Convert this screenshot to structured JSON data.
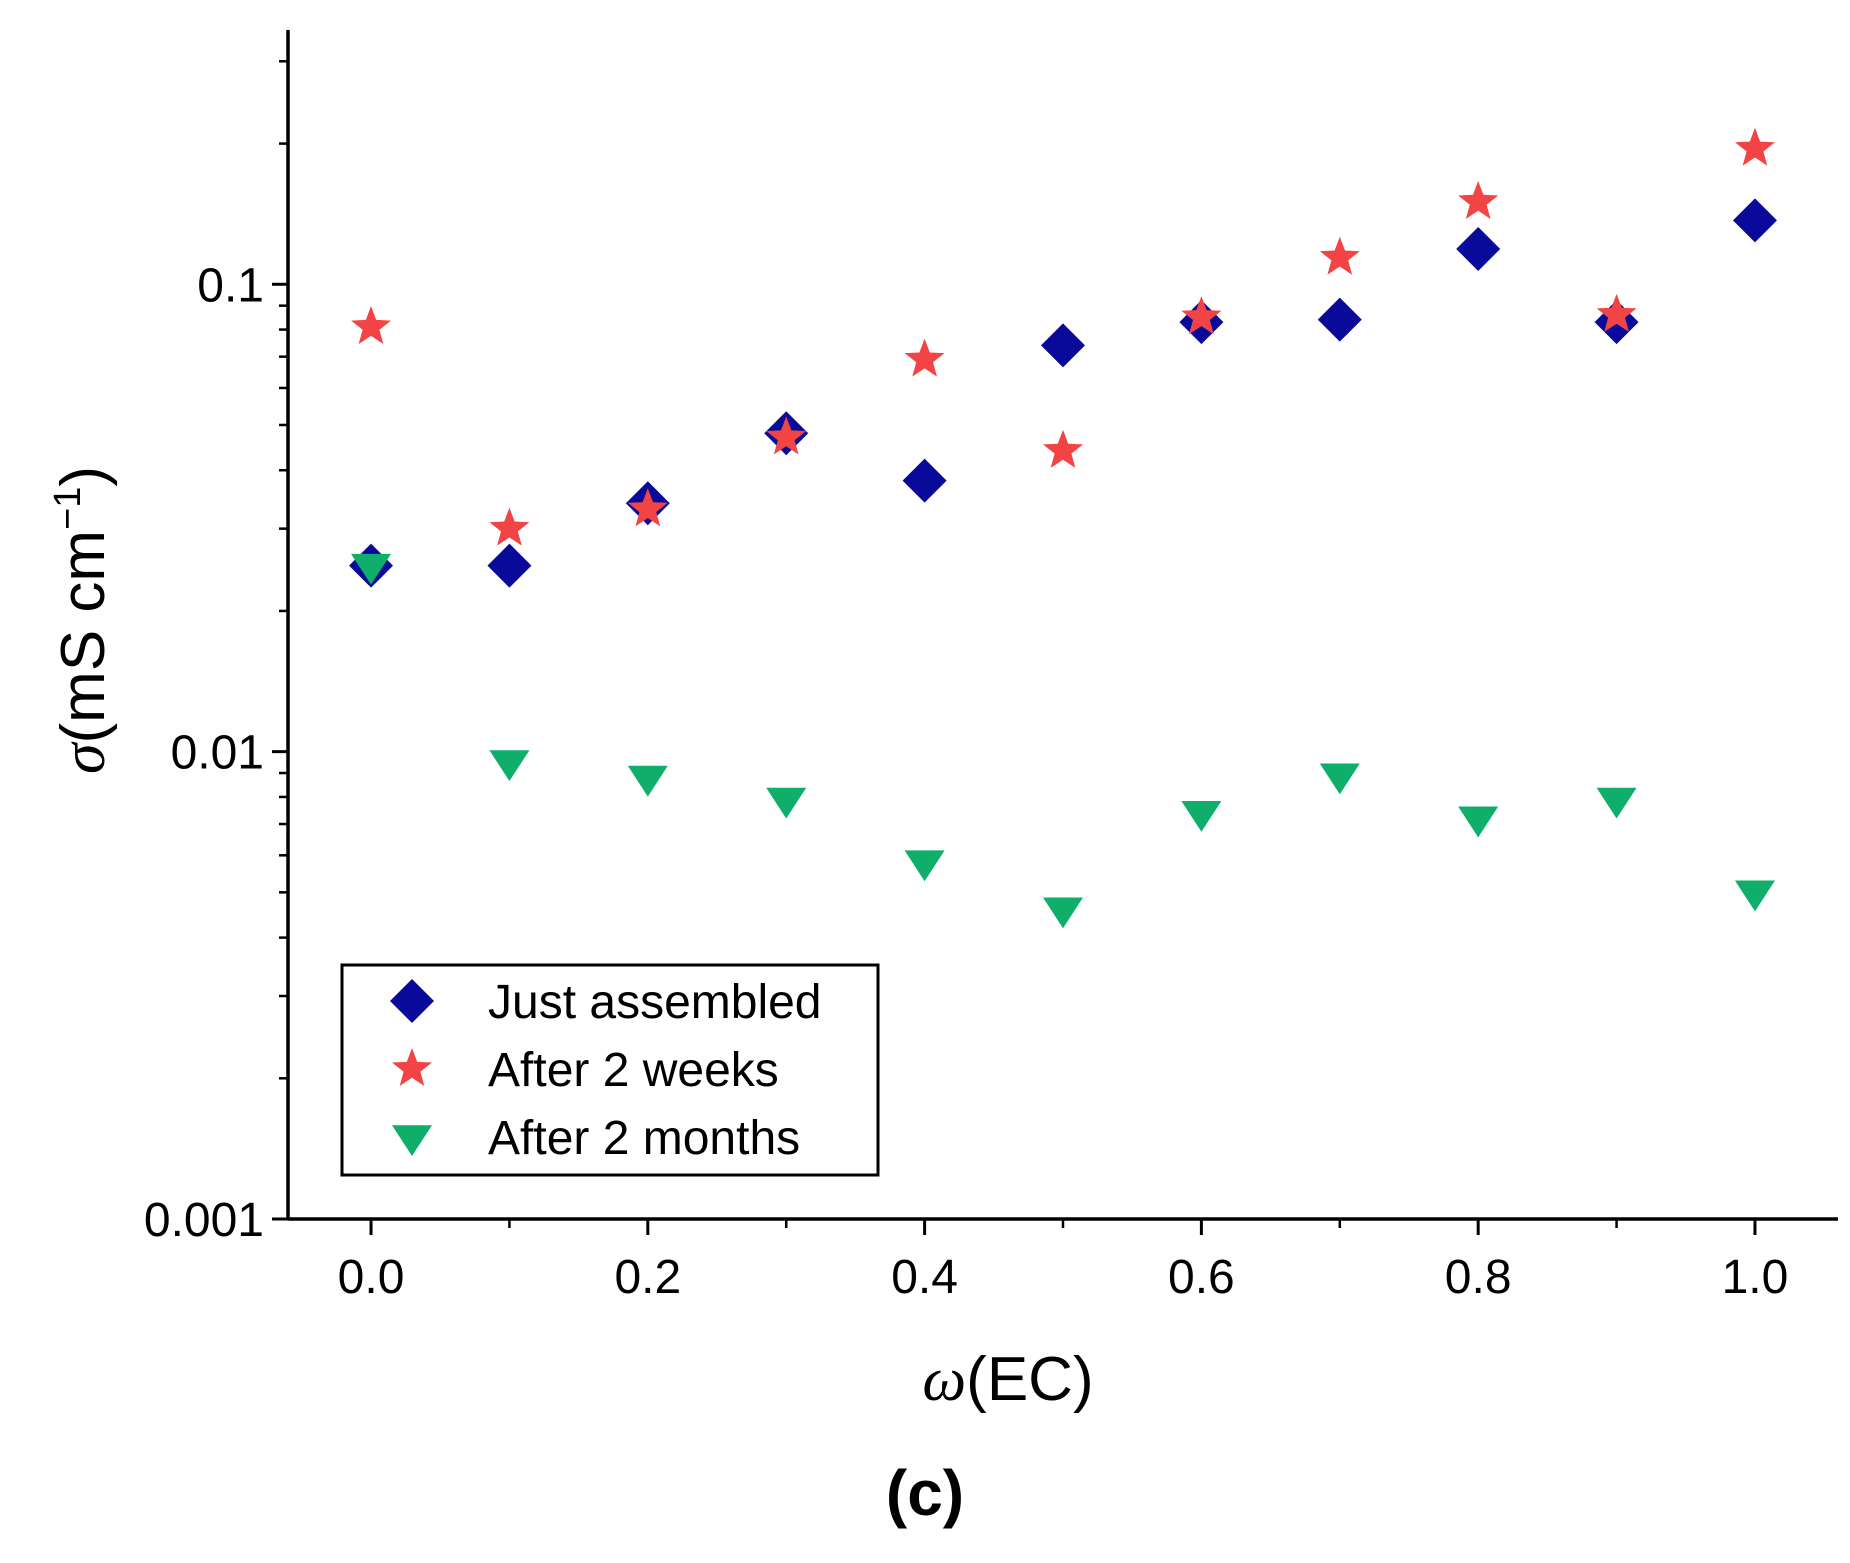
{
  "panel_label": "(c)",
  "chart_data": {
    "type": "scatter",
    "xlabel": {
      "symbol": "ω",
      "text": "(EC)"
    },
    "ylabel": {
      "symbol": "σ",
      "text": "(mS cm",
      "superscript": "−1",
      "close": ")"
    },
    "xlim": [
      -0.06,
      1.06
    ],
    "ylim": [
      0.001,
      0.35
    ],
    "yscale": "log",
    "grid": false,
    "legend_position": "lower-left",
    "x_ticks": [
      "0.0",
      "0.2",
      "0.4",
      "0.6",
      "0.8",
      "1.0"
    ],
    "y_ticks": [
      "0.001",
      "0.01",
      "0.1"
    ],
    "x": [
      0.0,
      0.1,
      0.2,
      0.3,
      0.4,
      0.5,
      0.6,
      0.7,
      0.8,
      0.9,
      1.0
    ],
    "series": [
      {
        "name": "Just assembled",
        "marker": "diamond",
        "color": "#0a0a9a",
        "values": [
          0.025,
          0.025,
          0.034,
          0.048,
          0.038,
          0.074,
          0.083,
          0.084,
          0.119,
          0.083,
          0.137
        ]
      },
      {
        "name": "After 2 weeks",
        "marker": "star",
        "color": "#f24444",
        "values": [
          0.081,
          0.03,
          0.033,
          0.047,
          0.069,
          0.044,
          0.085,
          0.114,
          0.15,
          0.086,
          0.195
        ]
      },
      {
        "name": "After 2 months",
        "marker": "triangle-down",
        "color": "#0fae6a",
        "values": [
          0.025,
          0.0095,
          0.0088,
          0.0079,
          0.0058,
          0.0046,
          0.0074,
          0.0089,
          0.0072,
          0.0079,
          0.005
        ]
      }
    ]
  }
}
